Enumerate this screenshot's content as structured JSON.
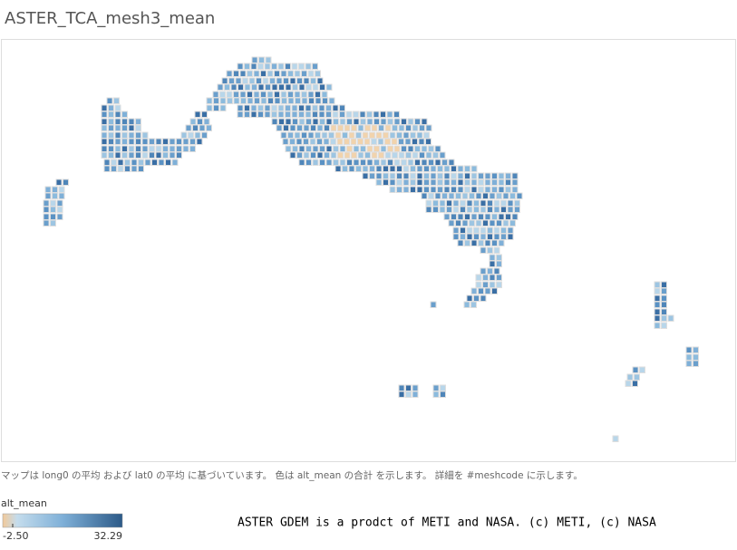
{
  "title": "ASTER_TCA_mesh3_mean",
  "caption": "マップは long0 の平均 および lat0 の平均 に基づいています。 色は alt_mean の合計 を示します。 詳細を #meshcode に示します。",
  "legend": {
    "title": "alt_mean",
    "min": {
      "value": -2.5,
      "label": "-2.50"
    },
    "max": 32.29
  },
  "attribution": "ASTER GDEM is a prodct of METI and NASA. (c) METI, (c) NASA"
}
